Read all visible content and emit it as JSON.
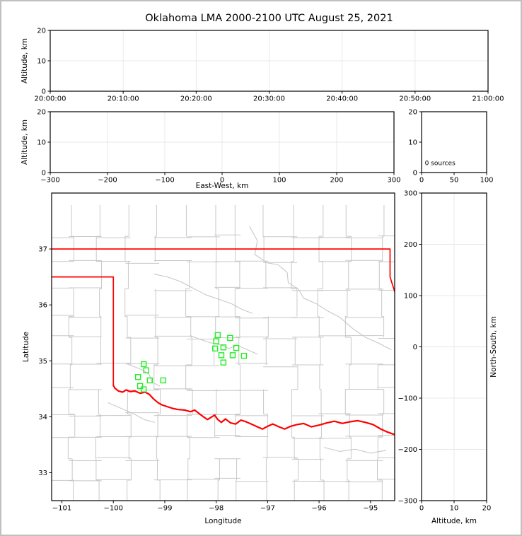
{
  "title": "Oklahoma LMA 2000-2100 UTC August 25, 2021",
  "colors": {
    "background": "#ffffff",
    "figure_border": "#c0c0c0",
    "frame": "#000000",
    "grid": "#e8e8e8",
    "county_line": "#c8c8c8",
    "state_border": "#ff0000",
    "station_marker": "#22ee22",
    "text": "#000000"
  },
  "chart_data": [
    {
      "id": "altitude_vs_time",
      "type": "scatter",
      "x_label": "",
      "y_label": "Altitude, km",
      "x_range": [
        0,
        60
      ],
      "y_range": [
        0,
        20
      ],
      "x_ticks": {
        "values": [
          0,
          10,
          20,
          30,
          40,
          50,
          60
        ],
        "labels": [
          "20:00:00",
          "20:10:00",
          "20:20:00",
          "20:30:00",
          "20:40:00",
          "20:50:00",
          "21:00:00"
        ]
      },
      "y_ticks": {
        "values": [
          0,
          10,
          20
        ],
        "labels": [
          "0",
          "10",
          "20"
        ]
      },
      "grid_x": [
        10,
        20,
        30,
        40,
        50
      ],
      "grid_y": [
        10
      ],
      "points": []
    },
    {
      "id": "altitude_vs_eastwest",
      "type": "scatter",
      "x_label": "East-West, km",
      "y_label": "Altitude, km",
      "x_range": [
        -300,
        300
      ],
      "y_range": [
        0,
        20
      ],
      "x_ticks": {
        "values": [
          -300,
          -200,
          -100,
          0,
          100,
          200,
          300
        ],
        "labels": [
          "−300",
          "−200",
          "−100",
          "0",
          "100",
          "200",
          "300"
        ]
      },
      "y_ticks": {
        "values": [
          0,
          10,
          20
        ],
        "labels": [
          "0",
          "10",
          "20"
        ]
      },
      "grid_x": [
        -200,
        -100,
        0,
        100,
        200
      ],
      "grid_y": [
        10
      ],
      "points": []
    },
    {
      "id": "altitude_histogram",
      "type": "bar",
      "x_label": "",
      "y_label": "",
      "x_range": [
        0,
        100
      ],
      "y_range": [
        0,
        20
      ],
      "x_ticks": {
        "values": [
          0,
          50,
          100
        ],
        "labels": [
          "0",
          "50",
          "100"
        ]
      },
      "y_ticks": {
        "values": [
          0,
          10,
          20
        ],
        "labels": [
          "0",
          "10",
          "20"
        ]
      },
      "grid_x": [],
      "grid_y": [],
      "annotation": {
        "text": "0 sources",
        "x": 5,
        "y": 2.4
      },
      "values": []
    },
    {
      "id": "plan_view_map",
      "type": "scatter",
      "x_label": "Longitude",
      "y_label": "Latitude",
      "x_range": [
        -101.2,
        -94.53
      ],
      "y_range": [
        32.5,
        38.0
      ],
      "x_ticks": {
        "values": [
          -101,
          -100,
          -99,
          -98,
          -97,
          -96,
          -95
        ],
        "labels": [
          "−101",
          "−100",
          "−99",
          "−98",
          "−97",
          "−96",
          "−95"
        ]
      },
      "y_ticks": {
        "values": [
          33,
          34,
          35,
          36,
          37
        ],
        "labels": [
          "33",
          "34",
          "35",
          "36",
          "37"
        ]
      },
      "grid_x": [],
      "grid_y": [],
      "stations": [
        [
          -97.97,
          35.46
        ],
        [
          -97.73,
          35.41
        ],
        [
          -98.0,
          35.35
        ],
        [
          -98.02,
          35.22
        ],
        [
          -97.86,
          35.24
        ],
        [
          -97.9,
          35.1
        ],
        [
          -97.68,
          35.1
        ],
        [
          -97.61,
          35.23
        ],
        [
          -97.46,
          35.09
        ],
        [
          -97.86,
          34.97
        ],
        [
          -99.41,
          34.94
        ],
        [
          -99.36,
          34.83
        ],
        [
          -99.52,
          34.71
        ],
        [
          -99.29,
          34.65
        ],
        [
          -99.03,
          34.65
        ],
        [
          -99.48,
          34.55
        ],
        [
          -99.41,
          34.49
        ]
      ],
      "state_border": [
        [
          [
            -101.2,
            37.0
          ],
          [
            -94.62,
            37.0
          ],
          [
            -94.62,
            36.5
          ],
          [
            -94.5,
            36.15
          ]
        ],
        [
          [
            -101.2,
            36.5
          ],
          [
            -100.0,
            36.5
          ],
          [
            -100.0,
            34.56
          ]
        ]
      ],
      "red_river": [
        [
          -100.0,
          34.56
        ],
        [
          -99.97,
          34.51
        ],
        [
          -99.9,
          34.46
        ],
        [
          -99.82,
          34.44
        ],
        [
          -99.75,
          34.48
        ],
        [
          -99.68,
          34.45
        ],
        [
          -99.58,
          34.46
        ],
        [
          -99.48,
          34.42
        ],
        [
          -99.38,
          34.44
        ],
        [
          -99.3,
          34.4
        ],
        [
          -99.22,
          34.32
        ],
        [
          -99.13,
          34.25
        ],
        [
          -99.05,
          34.21
        ],
        [
          -98.95,
          34.18
        ],
        [
          -98.85,
          34.15
        ],
        [
          -98.75,
          34.13
        ],
        [
          -98.62,
          34.12
        ],
        [
          -98.5,
          34.09
        ],
        [
          -98.42,
          34.12
        ],
        [
          -98.35,
          34.07
        ],
        [
          -98.25,
          34.0
        ],
        [
          -98.17,
          33.95
        ],
        [
          -98.1,
          33.99
        ],
        [
          -98.03,
          34.03
        ],
        [
          -97.97,
          33.95
        ],
        [
          -97.9,
          33.9
        ],
        [
          -97.82,
          33.96
        ],
        [
          -97.72,
          33.89
        ],
        [
          -97.62,
          33.87
        ],
        [
          -97.52,
          33.94
        ],
        [
          -97.42,
          33.91
        ],
        [
          -97.32,
          33.87
        ],
        [
          -97.2,
          33.82
        ],
        [
          -97.1,
          33.78
        ],
        [
          -97.0,
          33.83
        ],
        [
          -96.9,
          33.87
        ],
        [
          -96.78,
          33.82
        ],
        [
          -96.67,
          33.78
        ],
        [
          -96.55,
          33.83
        ],
        [
          -96.43,
          33.86
        ],
        [
          -96.3,
          33.88
        ],
        [
          -96.15,
          33.82
        ],
        [
          -96.0,
          33.85
        ],
        [
          -95.85,
          33.89
        ],
        [
          -95.7,
          33.92
        ],
        [
          -95.55,
          33.88
        ],
        [
          -95.4,
          33.91
        ],
        [
          -95.25,
          33.93
        ],
        [
          -95.1,
          33.9
        ],
        [
          -94.95,
          33.86
        ],
        [
          -94.8,
          33.78
        ],
        [
          -94.68,
          33.73
        ],
        [
          -94.53,
          33.68
        ]
      ],
      "rivers": [
        [
          [
            -97.35,
            37.4
          ],
          [
            -97.2,
            37.15
          ],
          [
            -97.25,
            36.9
          ],
          [
            -97.0,
            36.75
          ],
          [
            -96.8,
            36.72
          ],
          [
            -96.62,
            36.58
          ],
          [
            -96.6,
            36.4
          ],
          [
            -96.4,
            36.28
          ],
          [
            -96.3,
            36.12
          ],
          [
            -96.05,
            36.02
          ],
          [
            -95.85,
            35.9
          ],
          [
            -95.6,
            35.78
          ],
          [
            -95.35,
            35.58
          ],
          [
            -95.1,
            35.42
          ],
          [
            -94.85,
            35.32
          ],
          [
            -94.6,
            35.2
          ]
        ],
        [
          [
            -99.2,
            36.55
          ],
          [
            -98.95,
            36.5
          ],
          [
            -98.7,
            36.42
          ],
          [
            -98.45,
            36.3
          ],
          [
            -98.2,
            36.18
          ],
          [
            -97.95,
            36.1
          ],
          [
            -97.7,
            36.02
          ],
          [
            -97.5,
            35.92
          ],
          [
            -97.3,
            35.85
          ]
        ],
        [
          [
            -98.5,
            35.45
          ],
          [
            -98.3,
            35.38
          ],
          [
            -98.1,
            35.32
          ],
          [
            -97.9,
            35.28
          ],
          [
            -97.75,
            35.22
          ],
          [
            -97.6,
            35.28
          ],
          [
            -97.4,
            35.2
          ],
          [
            -97.2,
            35.12
          ]
        ],
        [
          [
            -99.75,
            34.95
          ],
          [
            -99.55,
            34.88
          ],
          [
            -99.4,
            34.82
          ],
          [
            -99.3,
            34.75
          ],
          [
            -99.25,
            34.62
          ],
          [
            -99.1,
            34.55
          ]
        ],
        [
          [
            -100.1,
            34.25
          ],
          [
            -99.85,
            34.15
          ],
          [
            -99.6,
            34.05
          ],
          [
            -99.4,
            33.95
          ],
          [
            -99.2,
            33.9
          ]
        ],
        [
          [
            -95.9,
            33.45
          ],
          [
            -95.6,
            33.38
          ],
          [
            -95.3,
            33.42
          ],
          [
            -95.0,
            33.35
          ],
          [
            -94.7,
            33.4
          ]
        ]
      ],
      "county_grid": {
        "seed": 11,
        "col_min": 0.38,
        "col_var": 0.3,
        "row_min": 0.34,
        "row_var": 0.26,
        "jitter": 0.14,
        "skip_v": 0.08,
        "skip_h": 0.12
      }
    },
    {
      "id": "northsouth_vs_altitude",
      "type": "scatter",
      "x_label": "Altitude, km",
      "y_label_right": "North-South, km",
      "x_range": [
        0,
        20
      ],
      "y_range": [
        -300,
        300
      ],
      "x_ticks": {
        "values": [
          0,
          10,
          20
        ],
        "labels": [
          "0",
          "10",
          "20"
        ]
      },
      "y_ticks": {
        "values": [
          -300,
          -200,
          -100,
          0,
          100,
          200,
          300
        ],
        "labels": [
          "−300",
          "−200",
          "−100",
          "0",
          "100",
          "200",
          "300"
        ]
      },
      "grid_x": [
        10
      ],
      "grid_y": [
        -200,
        -100,
        0,
        100,
        200
      ],
      "points": []
    }
  ]
}
